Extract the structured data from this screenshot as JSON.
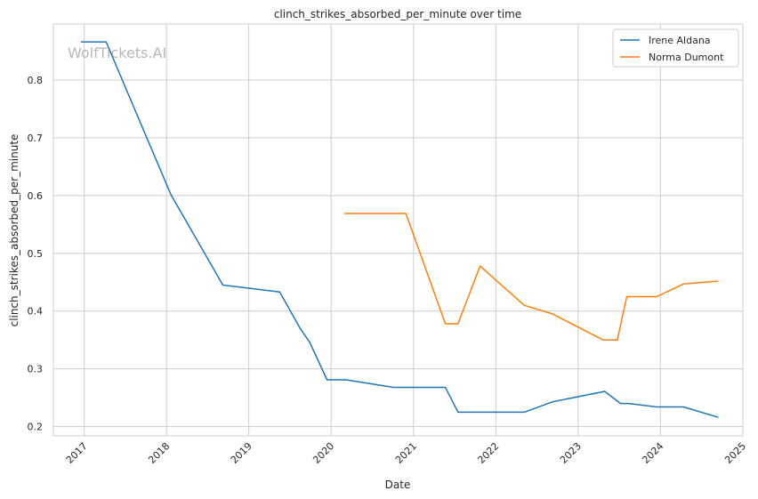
{
  "chart_data": {
    "type": "line",
    "title": "clinch_strikes_absorbed_per_minute over time",
    "xlabel": "Date",
    "ylabel": "clinch_strikes_absorbed_per_minute",
    "x_ticks": [
      "2017",
      "2018",
      "2019",
      "2020",
      "2021",
      "2022",
      "2023",
      "2024",
      "2025"
    ],
    "y_ticks": [
      "0.2",
      "0.3",
      "0.4",
      "0.5",
      "0.6",
      "0.7",
      "0.8"
    ],
    "xlim": [
      "2016-08-17",
      "2025-01-01"
    ],
    "ylim": [
      0.184,
      0.897
    ],
    "grid": true,
    "legend_position": "top-right",
    "watermark": "WolfTickets.AI",
    "colors": {
      "Irene Aldana": "#1f77b4",
      "Norma Dumont": "#ff7f0e",
      "grid": "#cccccc",
      "axis": "#cccccc"
    },
    "series": [
      {
        "name": "Irene Aldana",
        "points": [
          [
            "2016-12-17",
            0.866
          ],
          [
            "2017-04-08",
            0.866
          ],
          [
            "2018-01-20",
            0.602
          ],
          [
            "2018-09-08",
            0.445
          ],
          [
            "2019-05-18",
            0.433
          ],
          [
            "2019-08-17",
            0.37
          ],
          [
            "2019-09-28",
            0.346
          ],
          [
            "2019-12-14",
            0.281
          ],
          [
            "2020-03-07",
            0.281
          ],
          [
            "2020-10-04",
            0.268
          ],
          [
            "2021-05-22",
            0.268
          ],
          [
            "2021-07-17",
            0.225
          ],
          [
            "2022-05-07",
            0.225
          ],
          [
            "2022-09-10",
            0.243
          ],
          [
            "2023-04-29",
            0.261
          ],
          [
            "2023-07-08",
            0.24
          ],
          [
            "2023-08-12",
            0.24
          ],
          [
            "2023-12-16",
            0.234
          ],
          [
            "2024-04-13",
            0.234
          ],
          [
            "2024-09-14",
            0.216
          ]
        ]
      },
      {
        "name": "Norma Dumont",
        "points": [
          [
            "2020-02-29",
            0.569
          ],
          [
            "2020-11-28",
            0.569
          ],
          [
            "2021-05-22",
            0.378
          ],
          [
            "2021-07-17",
            0.378
          ],
          [
            "2021-10-23",
            0.478
          ],
          [
            "2022-05-07",
            0.41
          ],
          [
            "2022-09-10",
            0.395
          ],
          [
            "2023-04-22",
            0.35
          ],
          [
            "2023-06-24",
            0.35
          ],
          [
            "2023-08-05",
            0.425
          ],
          [
            "2023-12-16",
            0.425
          ],
          [
            "2024-04-13",
            0.447
          ],
          [
            "2024-09-14",
            0.452
          ]
        ]
      }
    ]
  }
}
